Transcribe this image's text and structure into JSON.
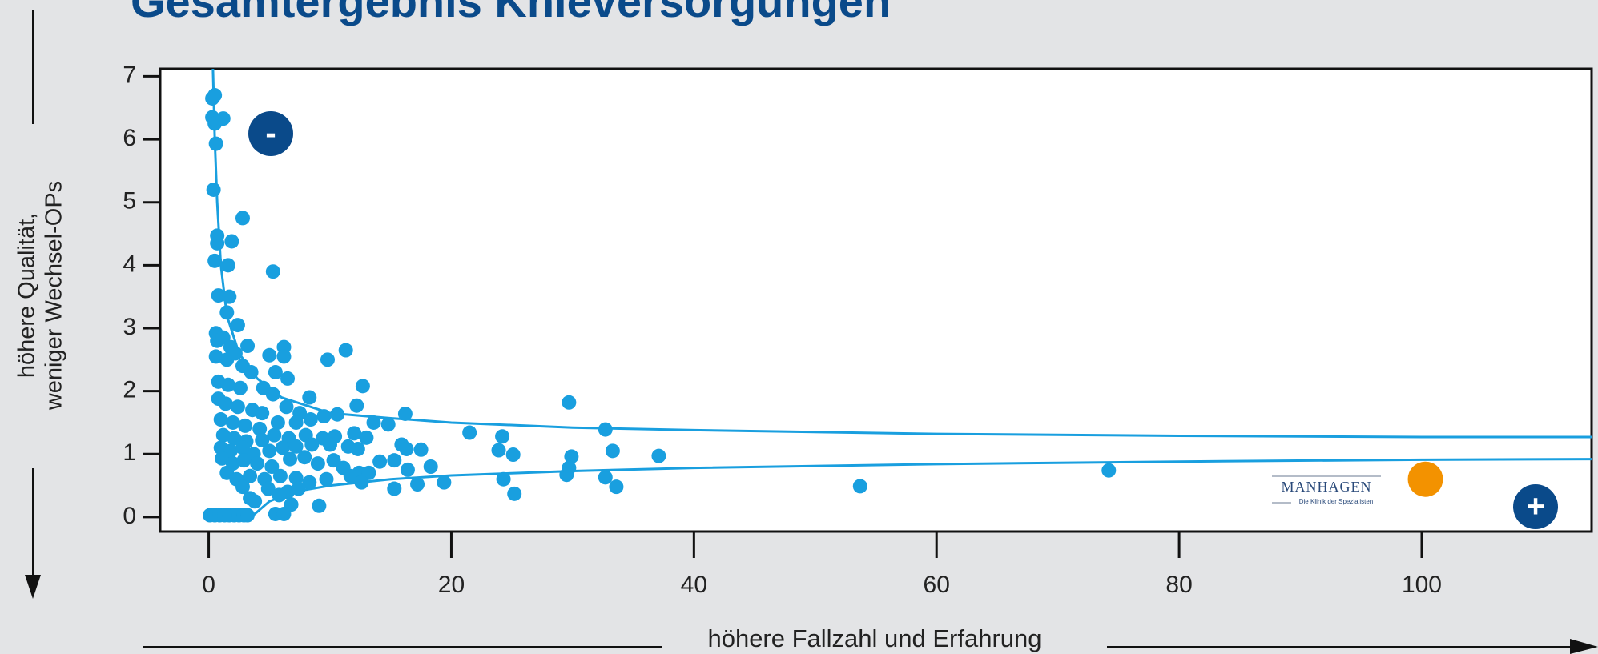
{
  "chart_data": {
    "type": "scatter",
    "title": "Gesamtergebnis Knieversorgungen",
    "xlabel": "höhere Fallzahl und Erfahrung",
    "ylabel": [
      "höhere Qualität,",
      "weniger Wechsel-OPs"
    ],
    "annotations": {
      "minus": "-",
      "plus": "+",
      "logo": "MANHAGEN",
      "logo_sub": "Die Klinik der Spezialisten"
    },
    "xlim": [
      -4,
      114
    ],
    "ylim": [
      -0.23,
      7.12
    ],
    "xticks": [
      0,
      20,
      40,
      60,
      80,
      100
    ],
    "yticks": [
      0,
      1,
      2,
      3,
      4,
      5,
      6,
      7
    ],
    "series": [
      {
        "color": "#199fdf",
        "x": [
          0.3,
          0.5,
          0.3,
          0.5,
          1.2,
          0.6,
          0.4,
          0.7,
          0.7,
          1.9,
          0.5,
          1.6,
          0.8,
          1.7,
          2.8,
          5.3,
          1.5,
          2.4,
          0.6,
          0.7,
          1.2,
          1.8,
          3.2,
          0.6,
          1.5,
          2.2,
          2.8,
          5,
          6.2,
          6.2,
          9.8,
          11.3,
          3.5,
          5.5,
          6.5,
          12.7,
          0.8,
          1.6,
          2.6,
          4.5,
          5.3,
          8.3,
          29.7,
          0.8,
          1.4,
          2.4,
          3.6,
          4.4,
          6.4,
          7.5,
          9.5,
          12.2,
          16.2,
          1,
          2,
          3,
          4.2,
          5.7,
          7.2,
          8.4,
          10.6,
          13.6,
          14.8,
          32.7,
          21.5,
          1.2,
          2.1,
          3.1,
          4.4,
          5.4,
          6.6,
          8,
          9.4,
          10.4,
          12,
          13,
          24.2,
          1,
          1.8,
          2.8,
          3.7,
          5,
          6.1,
          7.2,
          8.5,
          10,
          11.5,
          12.3,
          14.1,
          15.9,
          16.3,
          17.5,
          23.9,
          25.1,
          33.3,
          37.1,
          29.9,
          1.1,
          2,
          2.9,
          4,
          5.2,
          6.7,
          7.9,
          9,
          10.3,
          11.1,
          12.4,
          13.2,
          15.3,
          16.4,
          18.3,
          29.7,
          1.5,
          2.3,
          3.4,
          4.6,
          5.9,
          7.2,
          8.3,
          9.7,
          11.7,
          12.6,
          17.2,
          19.4,
          24.3,
          29.5,
          32.7,
          74.2,
          53.7,
          33.6,
          15.3,
          25.2,
          2.8,
          4.9,
          6.5,
          7.4,
          3.4,
          5.8,
          6.8,
          9.1,
          3.8,
          0.1,
          0.5,
          0.9,
          1.3,
          1.7,
          2.1,
          2.5,
          2.9,
          3.2,
          5.5,
          6.2
        ],
        "values": [
          6.65,
          6.7,
          6.35,
          6.25,
          6.33,
          5.93,
          5.2,
          4.47,
          4.35,
          4.38,
          4.07,
          4.0,
          3.52,
          3.5,
          4.75,
          3.9,
          3.25,
          3.05,
          2.92,
          2.8,
          2.85,
          2.7,
          2.72,
          2.55,
          2.5,
          2.6,
          2.4,
          2.57,
          2.7,
          2.55,
          2.5,
          2.65,
          2.3,
          2.3,
          2.2,
          2.08,
          2.15,
          2.1,
          2.05,
          2.05,
          1.95,
          1.9,
          1.82,
          1.88,
          1.8,
          1.75,
          1.7,
          1.65,
          1.75,
          1.65,
          1.6,
          1.77,
          1.64,
          1.55,
          1.5,
          1.45,
          1.4,
          1.5,
          1.5,
          1.55,
          1.63,
          1.5,
          1.47,
          1.39,
          1.34,
          1.3,
          1.25,
          1.2,
          1.22,
          1.3,
          1.25,
          1.3,
          1.25,
          1.28,
          1.33,
          1.26,
          1.28,
          1.1,
          1.05,
          1.1,
          1.0,
          1.05,
          1.1,
          1.12,
          1.15,
          1.15,
          1.12,
          1.08,
          0.88,
          1.15,
          1.08,
          1.07,
          1.06,
          0.99,
          1.05,
          0.97,
          0.96,
          0.93,
          0.85,
          0.9,
          0.85,
          0.8,
          0.92,
          0.95,
          0.85,
          0.9,
          0.78,
          0.7,
          0.7,
          0.9,
          0.75,
          0.8,
          0.78,
          0.7,
          0.6,
          0.65,
          0.6,
          0.65,
          0.62,
          0.55,
          0.6,
          0.65,
          0.55,
          0.52,
          0.55,
          0.6,
          0.67,
          0.63,
          0.74,
          0.49,
          0.48,
          0.45,
          0.37,
          0.48,
          0.45,
          0.4,
          0.45,
          0.3,
          0.35,
          0.2,
          0.18,
          0.25,
          0.03,
          0.03,
          0.03,
          0.03,
          0.03,
          0.03,
          0.03,
          0.03,
          0.03,
          0.05,
          0.05
        ]
      },
      {
        "color": "#f39200",
        "x": [
          100.3
        ],
        "values": [
          0.6
        ]
      }
    ],
    "curves": [
      {
        "color": "#199fdf",
        "x": [
          0.35,
          0.5,
          0.7,
          1,
          1.5,
          2.5,
          4,
          6,
          10,
          15,
          20,
          30,
          40,
          60,
          80,
          100,
          114
        ],
        "values": [
          7.12,
          6,
          5,
          4,
          3.2,
          2.6,
          2.2,
          1.9,
          1.65,
          1.57,
          1.5,
          1.42,
          1.38,
          1.32,
          1.29,
          1.27,
          1.27
        ]
      },
      {
        "color": "#199fdf",
        "x": [
          3.5,
          5,
          7,
          10,
          15,
          20,
          30,
          40,
          60,
          80,
          100,
          114
        ],
        "values": [
          0,
          0.25,
          0.4,
          0.5,
          0.6,
          0.66,
          0.73,
          0.78,
          0.84,
          0.88,
          0.91,
          0.92
        ]
      }
    ]
  }
}
